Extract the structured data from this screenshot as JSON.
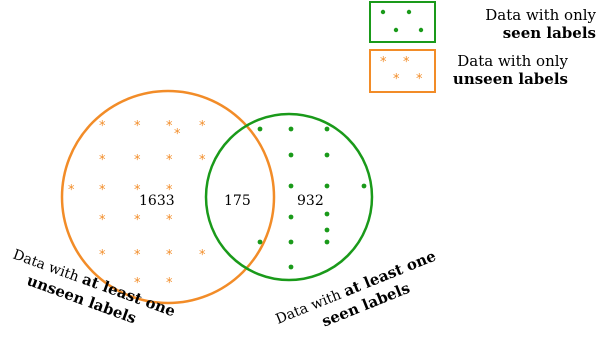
{
  "legend": {
    "seen": {
      "text_prefix": "Data with only ",
      "text_bold": "seen labels",
      "color": "#1a9a1a"
    },
    "unseen": {
      "text_prefix": "Data with only ",
      "text_bold": "unseen labels",
      "color": "#f28c28"
    }
  },
  "venn": {
    "unseen_only_count": "1633",
    "overlap_count": "175",
    "seen_only_count": "932",
    "unseen_circle_color": "#f28c28",
    "seen_circle_color": "#1a9a1a"
  },
  "labels": {
    "unseen_set": {
      "prefix": "Data with ",
      "bold1": "at least one",
      "bold2": "unseen labels"
    },
    "seen_set": {
      "prefix": "Data with ",
      "bold1": "at least one",
      "bold2": "seen labels"
    }
  }
}
